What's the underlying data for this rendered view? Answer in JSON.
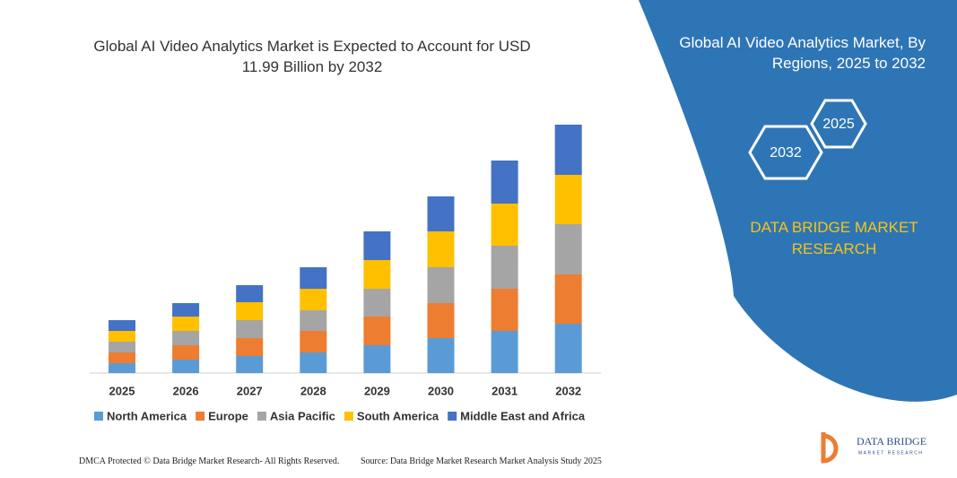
{
  "chart_data": {
    "type": "stacked-bar",
    "title": "Global AI Video Analytics Market is Expected to Account for USD 11.99 Billion by 2032",
    "categories": [
      "2025",
      "2026",
      "2027",
      "2028",
      "2029",
      "2030",
      "2031",
      "2032"
    ],
    "series": [
      {
        "name": "North America",
        "color": "#5b9bd5",
        "values": [
          11,
          15,
          19,
          23,
          31,
          39,
          47,
          55
        ]
      },
      {
        "name": "Europe",
        "color": "#ed7d31",
        "values": [
          12,
          16,
          20,
          24,
          32,
          39,
          47,
          55
        ]
      },
      {
        "name": "Asia Pacific",
        "color": "#a5a5a5",
        "values": [
          12,
          16,
          20,
          23,
          31,
          40,
          48,
          56
        ]
      },
      {
        "name": "South America",
        "color": "#ffc000",
        "values": [
          12,
          16,
          20,
          24,
          32,
          40,
          47,
          55
        ]
      },
      {
        "name": "Middle East and Africa",
        "color": "#4472c4",
        "values": [
          12,
          15,
          19,
          24,
          32,
          39,
          48,
          56
        ]
      }
    ]
  },
  "panel": {
    "title": "Global AI Video Analytics Market, By Regions, 2025 to 2032",
    "hex_front": "2025",
    "hex_back": "2032",
    "brand": "DATA BRIDGE MARKET RESEARCH"
  },
  "footer": {
    "left": "DMCA Protected © Data Bridge Market Research-  All Rights Reserved.",
    "right": "Source: Data Bridge Market Research  Market Analysis Study 2025"
  },
  "logo": {
    "name": "DATA BRIDGE",
    "tagline": "MARKET RESEARCH"
  }
}
